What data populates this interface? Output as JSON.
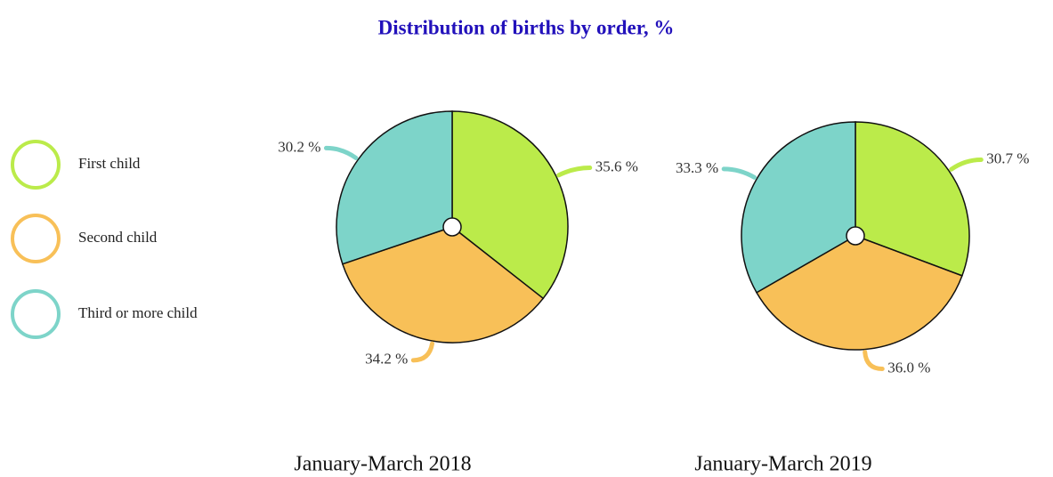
{
  "title": "Distribution of births by order, %",
  "chart_data": [
    {
      "type": "pie",
      "title": "January-March 2018",
      "categories": [
        "First child",
        "Second child",
        "Third or more child"
      ],
      "colors": [
        "#bbeb4a",
        "#f8c058",
        "#7dd4c9"
      ],
      "values": [
        35.6,
        34.2,
        30.2
      ],
      "value_labels": [
        "35.6 %",
        "34.2 %",
        "30.2 %"
      ]
    },
    {
      "type": "pie",
      "title": "January-March 2019",
      "categories": [
        "First child",
        "Second child",
        "Third or more child"
      ],
      "colors": [
        "#bbeb4a",
        "#f8c058",
        "#7dd4c9"
      ],
      "values": [
        30.7,
        36.0,
        33.3
      ],
      "value_labels": [
        "30.7 %",
        "36.0 %",
        "33.3 %"
      ]
    }
  ]
}
